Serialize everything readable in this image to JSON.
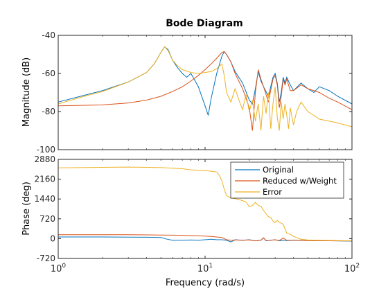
{
  "chart_data": {
    "type": "line",
    "title": "Bode Diagram",
    "xlabel": "Frequency  (rad/s)",
    "x_scale": "log",
    "xlim": [
      1,
      100
    ],
    "x_ticks": [
      1,
      10,
      100
    ],
    "x_tick_labels": [
      "10",
      "10",
      "10"
    ],
    "x_tick_exponents": [
      "0",
      "1",
      "2"
    ],
    "legend": {
      "placement": "top-right of phase panel",
      "entries": [
        "Original",
        "Reduced w/Weight",
        "Error"
      ]
    },
    "colors": {
      "Original": "#0072BD",
      "Reduced w/Weight": "#D95319",
      "Error": "#EDB120"
    },
    "grid": false,
    "panels": [
      {
        "name": "magnitude",
        "ylabel": "Magnitude (dB)",
        "ylim": [
          -100,
          -40
        ],
        "y_ticks": [
          -100,
          -80,
          -60,
          -40
        ],
        "y_tick_labels": [
          "-100",
          "-80",
          "-60",
          "-40"
        ],
        "series": [
          {
            "name": "Original",
            "x": [
              1,
              1.5,
              2,
              3,
              4,
              4.5,
              5,
              5.3,
              5.6,
              6,
              6.5,
              7,
              7.5,
              8,
              9,
              10,
              10.5,
              11,
              12,
              13,
              13.5,
              14,
              15,
              16,
              18,
              20,
              21,
              22,
              23,
              24,
              25,
              27,
              29,
              30,
              31,
              32,
              33,
              34,
              35,
              36,
              38,
              40,
              45,
              50,
              55,
              60,
              70,
              80,
              100
            ],
            "y": [
              -75,
              -71.5,
              -69,
              -64.5,
              -59.5,
              -55,
              -49,
              -46,
              -47.5,
              -53,
              -57,
              -60,
              -62,
              -60,
              -67,
              -77,
              -82,
              -73,
              -60,
              -51,
              -48.5,
              -50,
              -54,
              -59,
              -65,
              -74,
              -76,
              -68,
              -59,
              -64,
              -67,
              -72,
              -62,
              -60,
              -65,
              -75,
              -70,
              -62,
              -65,
              -62,
              -66,
              -69,
              -65,
              -68,
              -70,
              -67,
              -69,
              -72,
              -76
            ]
          },
          {
            "name": "Reduced w/Weight",
            "x": [
              1,
              2,
              3,
              4,
              5,
              6,
              7,
              8,
              9,
              10,
              11,
              12,
              13,
              13.5,
              14,
              15,
              16,
              18,
              20,
              21,
              22,
              23,
              24,
              25,
              27,
              29,
              30,
              31,
              32,
              33,
              34,
              35,
              36,
              38,
              40,
              45,
              50,
              60,
              70,
              80,
              100
            ],
            "y": [
              -77,
              -76.5,
              -75.5,
              -74,
              -72,
              -69.5,
              -67,
              -64,
              -61,
              -58,
              -55,
              -52,
              -49,
              -48.5,
              -50,
              -54,
              -60,
              -68,
              -78,
              -90,
              -70,
              -58,
              -63,
              -67,
              -75,
              -63,
              -61,
              -66,
              -78,
              -72,
              -63,
              -66,
              -63,
              -69,
              -69,
              -66,
              -68,
              -70,
              -73,
              -75,
              -79
            ]
          },
          {
            "name": "Error",
            "x": [
              1,
              1.5,
              2,
              3,
              4,
              4.5,
              5,
              5.3,
              5.6,
              6,
              6.5,
              7,
              8,
              9,
              10,
              11,
              12,
              13,
              13.5,
              14,
              15,
              16,
              17,
              18,
              19,
              20,
              21,
              22,
              23,
              24,
              25,
              26,
              27,
              28,
              29,
              30,
              31,
              32,
              33,
              34,
              35,
              36,
              37,
              38,
              40,
              42,
              45,
              50,
              55,
              60,
              70,
              80,
              100
            ],
            "y": [
              -76,
              -72,
              -69.5,
              -64.5,
              -59.5,
              -55,
              -49,
              -46,
              -48,
              -53,
              -56,
              -58,
              -59.5,
              -60,
              -59.5,
              -59,
              -57.5,
              -55,
              -61,
              -70,
              -75,
              -68,
              -74,
              -79,
              -71,
              -80,
              -74,
              -85,
              -76,
              -90,
              -72,
              -81,
              -70,
              -89,
              -76,
              -67,
              -83,
              -90,
              -75,
              -84,
              -76,
              -82,
              -89,
              -78,
              -87,
              -80,
              -75,
              -80,
              -82,
              -84,
              -85,
              -86,
              -88
            ]
          }
        ]
      },
      {
        "name": "phase",
        "ylabel": "Phase (deg)",
        "ylim": [
          -720,
          2880
        ],
        "y_ticks": [
          -720,
          0,
          720,
          1440,
          2160,
          2880
        ],
        "y_tick_labels": [
          "-720",
          "0",
          "720",
          "1440",
          "2160",
          "2880"
        ],
        "series": [
          {
            "name": "Original",
            "x": [
              1,
              2,
              3,
              4,
              5,
              5.5,
              6,
              7,
              8,
              9,
              10,
              11,
              12,
              13,
              14,
              15,
              16,
              18,
              20,
              22,
              24,
              25,
              26,
              28,
              30,
              32,
              34,
              36,
              40,
              45,
              50,
              60,
              80,
              100
            ],
            "y": [
              60,
              60,
              55,
              50,
              40,
              -20,
              -60,
              -60,
              -50,
              -60,
              -40,
              -20,
              -40,
              -40,
              -60,
              -120,
              -40,
              -60,
              -40,
              -80,
              -60,
              30,
              -80,
              -60,
              -40,
              -80,
              -60,
              -70,
              -60,
              -60,
              -65,
              -70,
              -80,
              -90
            ]
          },
          {
            "name": "Reduced w/Weight",
            "x": [
              1,
              2,
              3,
              4,
              5,
              6,
              7,
              8,
              9,
              10,
              11,
              12,
              13,
              14,
              15,
              16,
              18,
              20,
              22,
              24,
              25,
              26,
              28,
              30,
              32,
              34,
              36,
              40,
              45,
              50,
              60,
              80,
              100
            ],
            "y": [
              140,
              140,
              140,
              135,
              130,
              125,
              120,
              110,
              100,
              90,
              80,
              60,
              40,
              -40,
              -60,
              -50,
              -60,
              -50,
              -80,
              -60,
              30,
              -70,
              -60,
              -40,
              -70,
              20,
              -60,
              -60,
              -65,
              -70,
              -75,
              -80,
              -80
            ]
          },
          {
            "name": "Error",
            "x": [
              1,
              2,
              3,
              4,
              5,
              6,
              7,
              8,
              9,
              10,
              11,
              12,
              12.5,
              13,
              13.5,
              14,
              15,
              16,
              17,
              18,
              19,
              20,
              21,
              22,
              23,
              24,
              25,
              26,
              27,
              28,
              29,
              30,
              31,
              32,
              34,
              35,
              36,
              37,
              38,
              40,
              42,
              45,
              50,
              60,
              80,
              100
            ],
            "y": [
              2570,
              2590,
              2600,
              2590,
              2580,
              2560,
              2540,
              2500,
              2480,
              2470,
              2450,
              2420,
              2300,
              2100,
              1800,
              1560,
              1480,
              1450,
              1420,
              1380,
              1330,
              1160,
              1200,
              1320,
              1200,
              1180,
              1020,
              900,
              800,
              760,
              640,
              580,
              660,
              600,
              520,
              360,
              200,
              180,
              160,
              80,
              40,
              -20,
              -50,
              -60,
              -70,
              -80
            ]
          }
        ]
      }
    ]
  }
}
